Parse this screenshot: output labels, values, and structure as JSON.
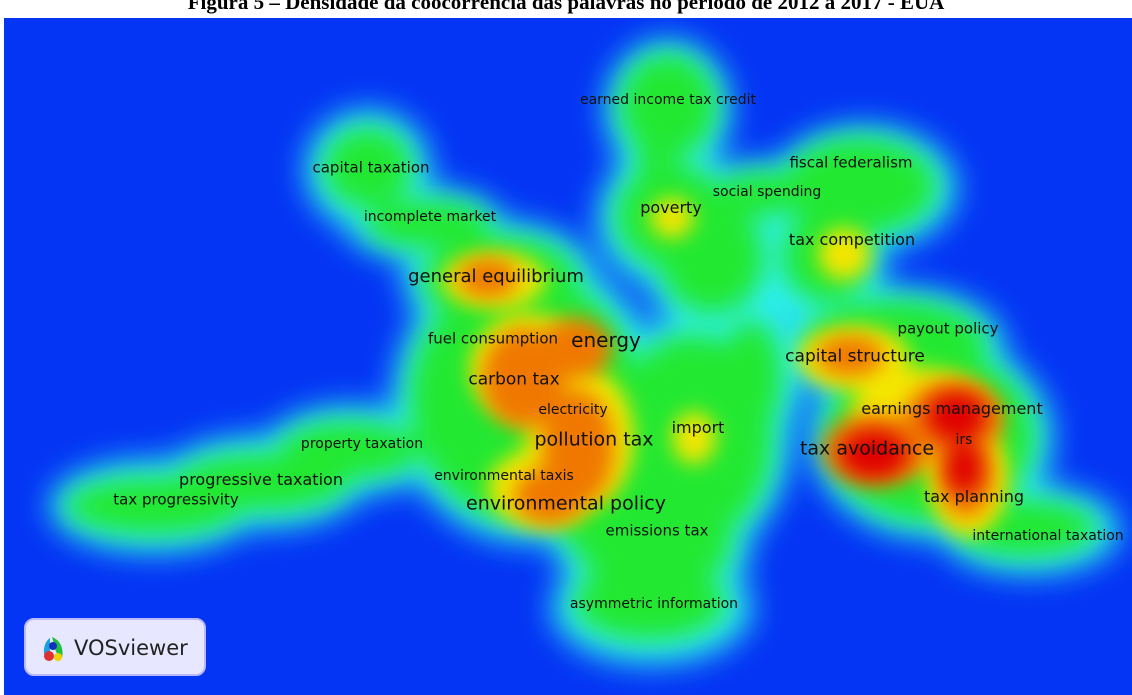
{
  "caption": "Figura 5 – Densidade da coocorrência das palavras no período de 2012 a 2017 - EUA",
  "background_color": "#0434f4",
  "density_colors": [
    "#2ff0f0",
    "#22e830",
    "#f4e600",
    "#f07800",
    "#e00000"
  ],
  "logo": {
    "label": "VOSviewer",
    "icon": "vosviewer-logo-icon"
  },
  "terms": [
    {
      "label": "earned income tax credit",
      "size": 14
    },
    {
      "label": "capital taxation",
      "size": 15
    },
    {
      "label": "fiscal federalism",
      "size": 15
    },
    {
      "label": "social spending",
      "size": 14
    },
    {
      "label": "poverty",
      "size": 16
    },
    {
      "label": "incomplete market",
      "size": 14
    },
    {
      "label": "tax competition",
      "size": 16
    },
    {
      "label": "general equilibrium",
      "size": 18
    },
    {
      "label": "payout policy",
      "size": 15
    },
    {
      "label": "fuel consumption",
      "size": 15
    },
    {
      "label": "energy",
      "size": 20
    },
    {
      "label": "capital structure",
      "size": 17
    },
    {
      "label": "carbon tax",
      "size": 17
    },
    {
      "label": "electricity",
      "size": 14
    },
    {
      "label": "earnings management",
      "size": 16
    },
    {
      "label": "import",
      "size": 16
    },
    {
      "label": "pollution tax",
      "size": 19
    },
    {
      "label": "property taxation",
      "size": 14
    },
    {
      "label": "tax avoidance",
      "size": 19
    },
    {
      "label": "irs",
      "size": 14
    },
    {
      "label": "environmental taxis",
      "size": 14
    },
    {
      "label": "progressive taxation",
      "size": 16
    },
    {
      "label": "tax progressivity",
      "size": 15
    },
    {
      "label": "environmental policy",
      "size": 19
    },
    {
      "label": "tax planning",
      "size": 16
    },
    {
      "label": "emissions tax",
      "size": 15
    },
    {
      "label": "international taxation",
      "size": 14
    },
    {
      "label": "asymmetric information",
      "size": 14
    }
  ]
}
